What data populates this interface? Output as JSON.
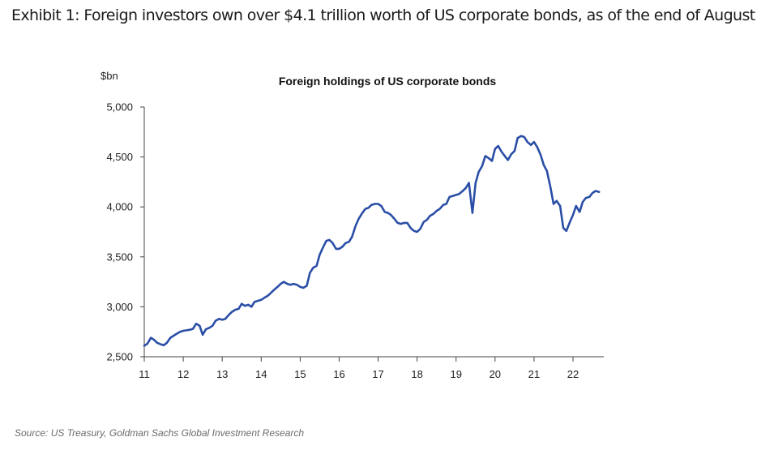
{
  "exhibit": {
    "title": "Exhibit 1: Foreign investors own over $4.1 trillion worth of US corporate bonds, as of the end of August"
  },
  "source": "Source: US Treasury, Goldman Sachs Global Investment Research",
  "chart_data": {
    "type": "line",
    "title": "Foreign holdings of US corporate bonds",
    "ylabel": "$bn",
    "xlabel": "",
    "ylim": [
      2500,
      5000
    ],
    "xlim": [
      11,
      22.75
    ],
    "yticks": [
      2500,
      3000,
      3500,
      4000,
      4500,
      5000
    ],
    "ytick_labels": [
      "2,500",
      "3,000",
      "3,500",
      "4,000",
      "4,500",
      "5,000"
    ],
    "xticks": [
      11,
      12,
      13,
      14,
      15,
      16,
      17,
      18,
      19,
      20,
      21,
      22
    ],
    "xtick_labels": [
      "11",
      "12",
      "13",
      "14",
      "15",
      "16",
      "17",
      "18",
      "19",
      "20",
      "21",
      "22"
    ],
    "grid": false,
    "legend": "none",
    "line_color": "#2a4ea6",
    "series": [
      {
        "values": [
          [
            11.0,
            2610
          ],
          [
            11.08,
            2630
          ],
          [
            11.17,
            2690
          ],
          [
            11.25,
            2670
          ],
          [
            11.33,
            2640
          ],
          [
            11.42,
            2625
          ],
          [
            11.5,
            2615
          ],
          [
            11.58,
            2640
          ],
          [
            11.67,
            2690
          ],
          [
            11.75,
            2710
          ],
          [
            11.83,
            2730
          ],
          [
            11.92,
            2750
          ],
          [
            12.0,
            2760
          ],
          [
            12.08,
            2765
          ],
          [
            12.17,
            2770
          ],
          [
            12.25,
            2780
          ],
          [
            12.33,
            2830
          ],
          [
            12.42,
            2810
          ],
          [
            12.5,
            2720
          ],
          [
            12.58,
            2775
          ],
          [
            12.67,
            2790
          ],
          [
            12.75,
            2810
          ],
          [
            12.83,
            2860
          ],
          [
            12.92,
            2880
          ],
          [
            13.0,
            2870
          ],
          [
            13.08,
            2880
          ],
          [
            13.17,
            2920
          ],
          [
            13.25,
            2950
          ],
          [
            13.33,
            2970
          ],
          [
            13.42,
            2980
          ],
          [
            13.5,
            3030
          ],
          [
            13.58,
            3010
          ],
          [
            13.67,
            3020
          ],
          [
            13.75,
            3000
          ],
          [
            13.83,
            3050
          ],
          [
            13.92,
            3060
          ],
          [
            14.0,
            3070
          ],
          [
            14.08,
            3090
          ],
          [
            14.17,
            3110
          ],
          [
            14.25,
            3140
          ],
          [
            14.33,
            3170
          ],
          [
            14.42,
            3200
          ],
          [
            14.5,
            3230
          ],
          [
            14.58,
            3250
          ],
          [
            14.67,
            3230
          ],
          [
            14.75,
            3220
          ],
          [
            14.83,
            3230
          ],
          [
            14.92,
            3220
          ],
          [
            15.0,
            3200
          ],
          [
            15.08,
            3190
          ],
          [
            15.17,
            3210
          ],
          [
            15.25,
            3340
          ],
          [
            15.33,
            3390
          ],
          [
            15.42,
            3410
          ],
          [
            15.5,
            3520
          ],
          [
            15.58,
            3590
          ],
          [
            15.67,
            3660
          ],
          [
            15.75,
            3670
          ],
          [
            15.83,
            3640
          ],
          [
            15.92,
            3580
          ],
          [
            16.0,
            3580
          ],
          [
            16.08,
            3600
          ],
          [
            16.17,
            3640
          ],
          [
            16.25,
            3650
          ],
          [
            16.33,
            3700
          ],
          [
            16.42,
            3810
          ],
          [
            16.5,
            3880
          ],
          [
            16.58,
            3930
          ],
          [
            16.67,
            3980
          ],
          [
            16.75,
            3990
          ],
          [
            16.83,
            4020
          ],
          [
            16.92,
            4030
          ],
          [
            17.0,
            4030
          ],
          [
            17.08,
            4010
          ],
          [
            17.17,
            3950
          ],
          [
            17.25,
            3940
          ],
          [
            17.33,
            3920
          ],
          [
            17.42,
            3880
          ],
          [
            17.5,
            3840
          ],
          [
            17.58,
            3830
          ],
          [
            17.67,
            3840
          ],
          [
            17.75,
            3840
          ],
          [
            17.83,
            3790
          ],
          [
            17.92,
            3760
          ],
          [
            18.0,
            3750
          ],
          [
            18.08,
            3780
          ],
          [
            18.17,
            3850
          ],
          [
            18.25,
            3870
          ],
          [
            18.33,
            3910
          ],
          [
            18.42,
            3930
          ],
          [
            18.5,
            3960
          ],
          [
            18.58,
            3980
          ],
          [
            18.67,
            4020
          ],
          [
            18.75,
            4030
          ],
          [
            18.83,
            4100
          ],
          [
            18.92,
            4110
          ],
          [
            19.0,
            4120
          ],
          [
            19.08,
            4130
          ],
          [
            19.17,
            4160
          ],
          [
            19.25,
            4190
          ],
          [
            19.33,
            4240
          ],
          [
            19.42,
            3940
          ],
          [
            19.5,
            4240
          ],
          [
            19.58,
            4350
          ],
          [
            19.67,
            4410
          ],
          [
            19.75,
            4510
          ],
          [
            19.83,
            4490
          ],
          [
            19.92,
            4460
          ],
          [
            20.0,
            4580
          ],
          [
            20.08,
            4610
          ],
          [
            20.17,
            4550
          ],
          [
            20.25,
            4510
          ],
          [
            20.33,
            4470
          ],
          [
            20.42,
            4530
          ],
          [
            20.5,
            4560
          ],
          [
            20.58,
            4690
          ],
          [
            20.67,
            4710
          ],
          [
            20.75,
            4700
          ],
          [
            20.83,
            4650
          ],
          [
            20.92,
            4620
          ],
          [
            21.0,
            4650
          ],
          [
            21.08,
            4600
          ],
          [
            21.17,
            4520
          ],
          [
            21.25,
            4420
          ],
          [
            21.33,
            4360
          ],
          [
            21.42,
            4200
          ],
          [
            21.5,
            4030
          ],
          [
            21.58,
            4060
          ],
          [
            21.67,
            4010
          ],
          [
            21.75,
            3790
          ],
          [
            21.83,
            3760
          ],
          [
            21.92,
            3850
          ],
          [
            22.0,
            3920
          ],
          [
            22.08,
            4010
          ],
          [
            22.17,
            3950
          ],
          [
            22.25,
            4050
          ],
          [
            22.33,
            4090
          ],
          [
            22.42,
            4100
          ],
          [
            22.5,
            4140
          ],
          [
            22.58,
            4160
          ],
          [
            22.67,
            4150
          ]
        ]
      }
    ]
  }
}
